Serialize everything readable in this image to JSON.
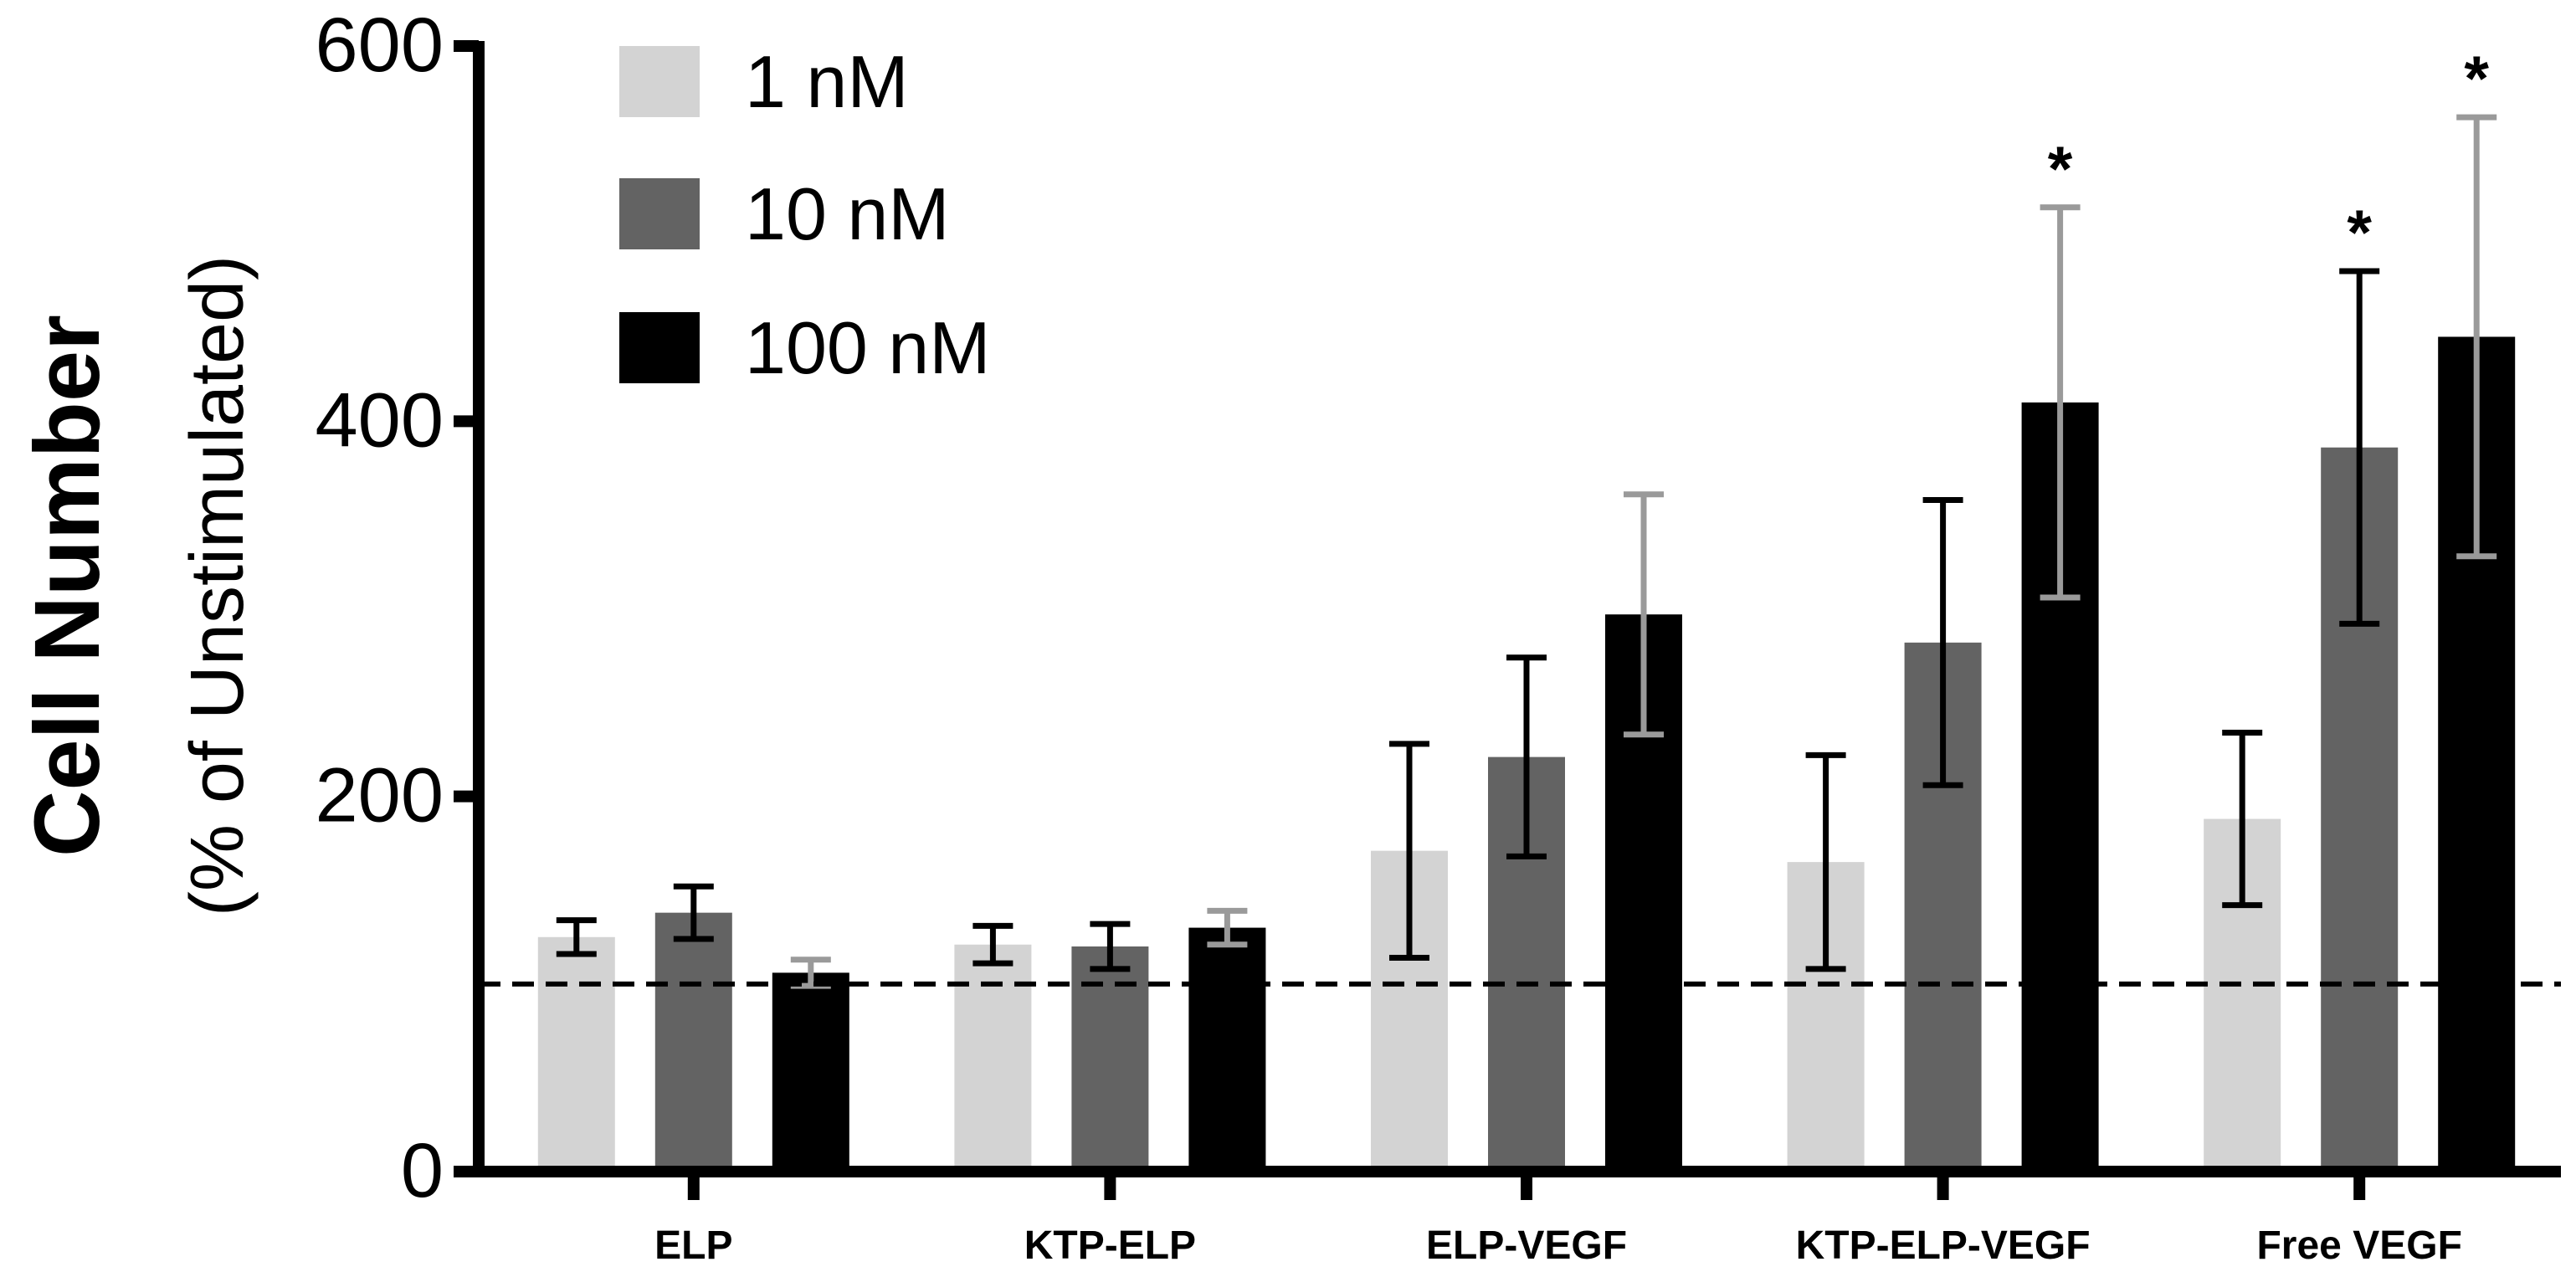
{
  "chart_data": {
    "type": "bar",
    "title": "",
    "xlabel": "",
    "ylabel": "Cell Number",
    "ylabel_sub": "(% of Unstimulated)",
    "ylim": [
      0,
      600
    ],
    "yticks": [
      0,
      200,
      400,
      600
    ],
    "categories": [
      "ELP",
      "KTP-ELP",
      "ELP-VEGF",
      "KTP-ELP-VEGF",
      "Free VEGF"
    ],
    "series": [
      {
        "name": "1 nM",
        "color": "#d3d3d3",
        "values": [
          125,
          121,
          171,
          165,
          188
        ],
        "errors": [
          9,
          10,
          57,
          57,
          46
        ],
        "error_color": "#000000",
        "significant": [
          false,
          false,
          false,
          false,
          false
        ]
      },
      {
        "name": "10 nM",
        "color": "#636363",
        "values": [
          138,
          120,
          221,
          282,
          386
        ],
        "errors": [
          14,
          12,
          53,
          76,
          94
        ],
        "error_color": "#000000",
        "significant": [
          false,
          false,
          false,
          false,
          true
        ]
      },
      {
        "name": "100 nM",
        "color": "#000000",
        "values": [
          106,
          130,
          297,
          410,
          445
        ],
        "errors": [
          7,
          9,
          64,
          104,
          117
        ],
        "error_color": "#9a9a9a",
        "significant": [
          false,
          false,
          false,
          true,
          true
        ]
      }
    ],
    "reference_line": {
      "value": 100,
      "style": "dashed"
    },
    "significance_marker": "*",
    "legend_position": "top-left",
    "grid": false
  }
}
